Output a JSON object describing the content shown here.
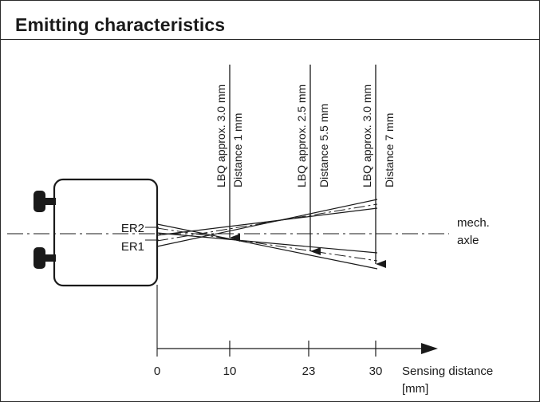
{
  "header": {
    "title": "Emitting characteristics"
  },
  "diagram": {
    "emitters": {
      "er2": "ER2",
      "er1": "ER1"
    },
    "axis_label": {
      "line1": "mech.",
      "line2": "axle"
    },
    "callouts": [
      {
        "lbq": "LBQ approx. 3.0 mm",
        "distance": "Distance 1 mm"
      },
      {
        "lbq": "LBQ approx. 2.5 mm",
        "distance": "Distance 5.5 mm"
      },
      {
        "lbq": "LBQ approx. 3.0 mm",
        "distance": "Distance 7 mm"
      }
    ],
    "scale": {
      "ticks": [
        "0",
        "10",
        "23",
        "30"
      ],
      "label_line1": "Sensing distance",
      "label_line2": "[mm]"
    }
  },
  "colors": {
    "line": "#1a1a1a",
    "background": "#ffffff"
  }
}
